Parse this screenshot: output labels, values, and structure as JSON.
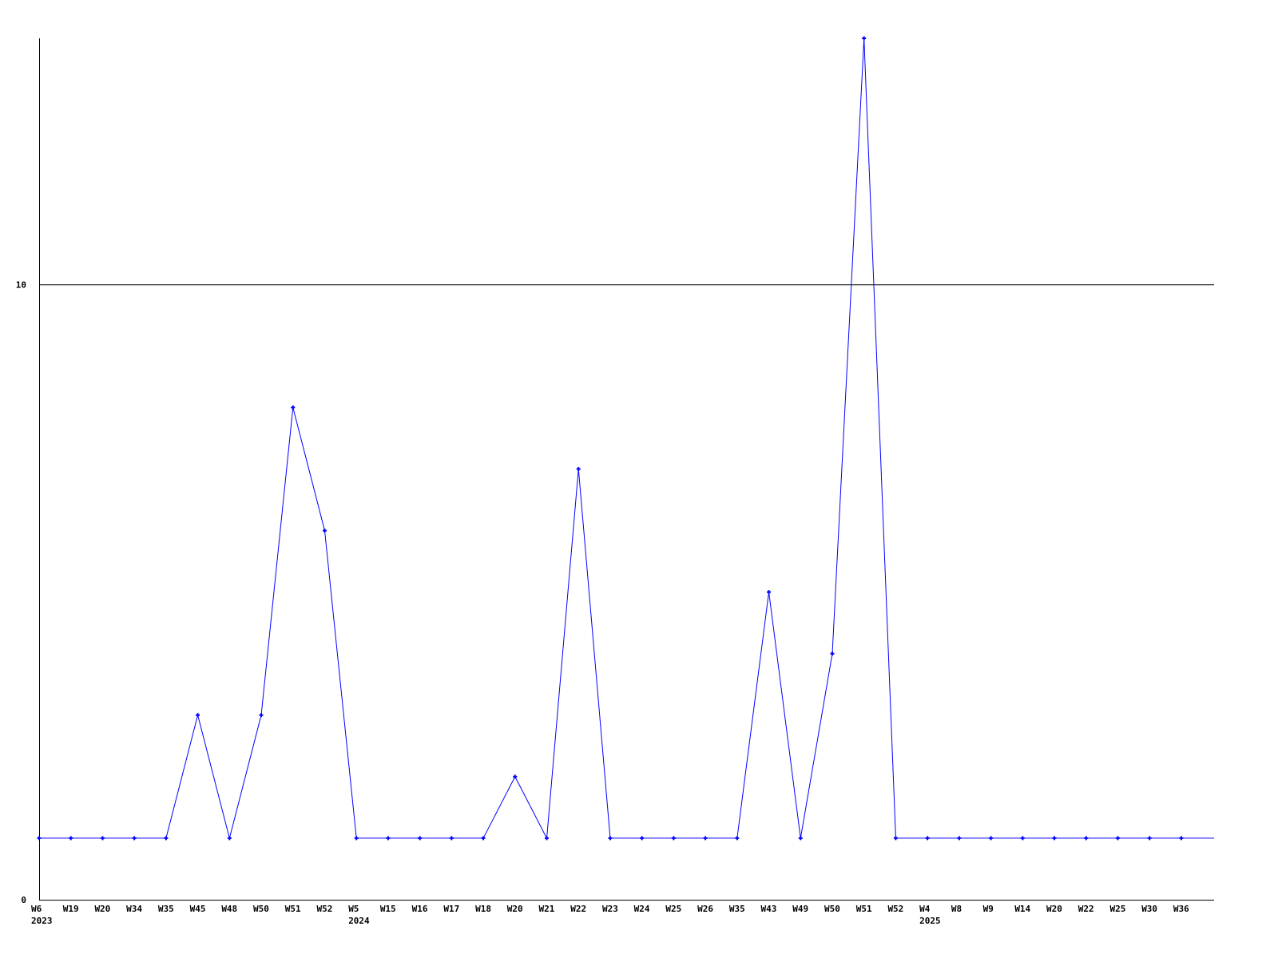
{
  "chart_data": {
    "type": "line",
    "title": "",
    "xlabel": "",
    "ylabel": "",
    "ylim": [
      0,
      14
    ],
    "yticks": [
      0,
      10
    ],
    "grid": "horizontal line at 10",
    "line_color": "#0000ff",
    "axis_color": "#000000",
    "categories": [
      "W6",
      "W19",
      "W20",
      "W34",
      "W35",
      "W45",
      "W48",
      "W50",
      "W51",
      "W52",
      "W5",
      "W15",
      "W16",
      "W17",
      "W18",
      "W20",
      "W21",
      "W22",
      "W23",
      "W24",
      "W25",
      "W26",
      "W35",
      "W43",
      "W49",
      "W50",
      "W51",
      "W52",
      "W4",
      "W8",
      "W9",
      "W14",
      "W20",
      "W22",
      "W25",
      "W30",
      "W36"
    ],
    "year_labels": [
      {
        "label": "2023",
        "category_index": 0
      },
      {
        "label": "2024",
        "category_index": 10
      },
      {
        "label": "2025",
        "category_index": 28
      }
    ],
    "values": [
      1,
      1,
      1,
      1,
      1,
      3,
      1,
      3,
      8,
      6,
      1,
      1,
      1,
      1,
      1,
      2,
      1,
      7,
      1,
      1,
      1,
      1,
      1,
      5,
      1,
      4,
      14,
      1,
      1,
      1,
      1,
      1,
      1,
      1,
      1,
      1,
      1
    ]
  }
}
